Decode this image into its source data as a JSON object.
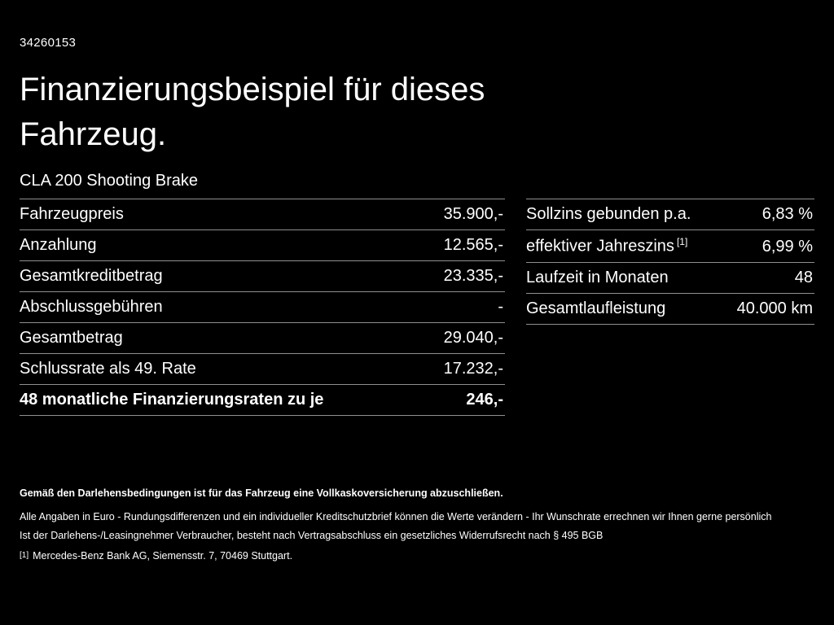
{
  "page": {
    "id": "34260153",
    "title": "Finanzierungsbeispiel für dieses Fahrzeug.",
    "vehicle": "CLA 200 Shooting Brake"
  },
  "left_table": {
    "rows": [
      {
        "label": "Fahrzeugpreis",
        "value": "35.900,-"
      },
      {
        "label": "Anzahlung",
        "value": "12.565,-"
      },
      {
        "label": "Gesamtkreditbetrag",
        "value": "23.335,-"
      },
      {
        "label": "Abschlussgebühren",
        "value": "-"
      },
      {
        "label": "Gesamtbetrag",
        "value": "29.040,-"
      },
      {
        "label": "Schlussrate als 49. Rate",
        "value": "17.232,-"
      },
      {
        "label": "48 monatliche Finanzierungsraten zu je",
        "value": "246,-"
      }
    ]
  },
  "right_table": {
    "rows": [
      {
        "label": "Sollzins gebunden p.a.",
        "sup": "",
        "value": "6,83 %"
      },
      {
        "label": "effektiver Jahreszins",
        "sup": "[1]",
        "value": "6,99 %"
      },
      {
        "label": "Laufzeit in Monaten",
        "sup": "",
        "value": "48"
      },
      {
        "label": "Gesamtlaufleistung",
        "sup": "",
        "value": "40.000 km"
      }
    ]
  },
  "footer": {
    "insurance_note": "Gemäß den Darlehensbedingungen ist für das Fahrzeug eine Vollkaskoversicherung abzuschließen.",
    "line1": "Alle Angaben in Euro - Rundungsdifferenzen und ein individueller Kreditschutzbrief können die Werte verändern - Ihr Wunschrate errechnen wir Ihnen gerne persönlich",
    "line2": "Ist der Darlehens-/Leasingnehmer Verbraucher, besteht nach Vertragsabschluss ein gesetzliches Widerrufsrecht nach § 495 BGB",
    "footnote_marker": "[1]",
    "footnote_text": "Mercedes-Benz Bank AG, Siemensstr. 7, 70469 Stuttgart."
  },
  "colors": {
    "background": "#000000",
    "text": "#ffffff",
    "divider": "#8f8f8f"
  }
}
